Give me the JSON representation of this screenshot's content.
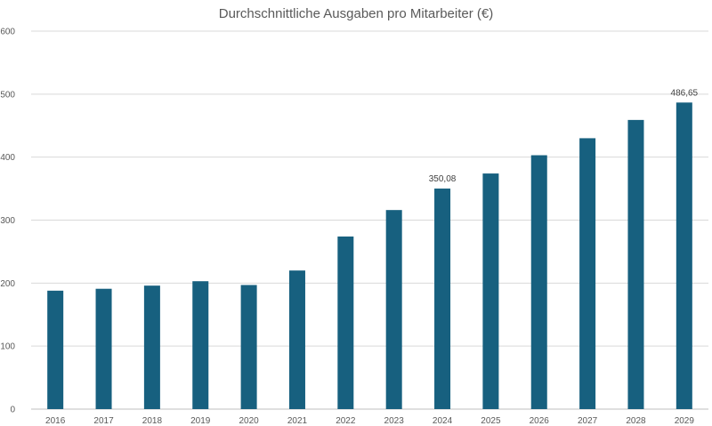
{
  "chart_data": {
    "type": "bar",
    "title": "Durchschnittliche Ausgaben pro Mitarbeiter (€)",
    "xlabel": "",
    "ylabel": "",
    "categories": [
      "2016",
      "2017",
      "2018",
      "2019",
      "2020",
      "2021",
      "2022",
      "2023",
      "2024",
      "2025",
      "2026",
      "2027",
      "2028",
      "2029"
    ],
    "values": [
      188,
      191,
      196,
      203,
      197,
      220,
      274,
      316,
      350.08,
      374,
      403,
      430,
      459,
      486.65
    ],
    "data_labels": {
      "2024": "350,08",
      "2029": "486,65"
    },
    "ylim": [
      0,
      600
    ],
    "yticks": [
      "0",
      "100",
      "200",
      "300",
      "400",
      "500",
      "600"
    ],
    "grid": true,
    "legend": "none",
    "bar_color": "#17607f"
  }
}
